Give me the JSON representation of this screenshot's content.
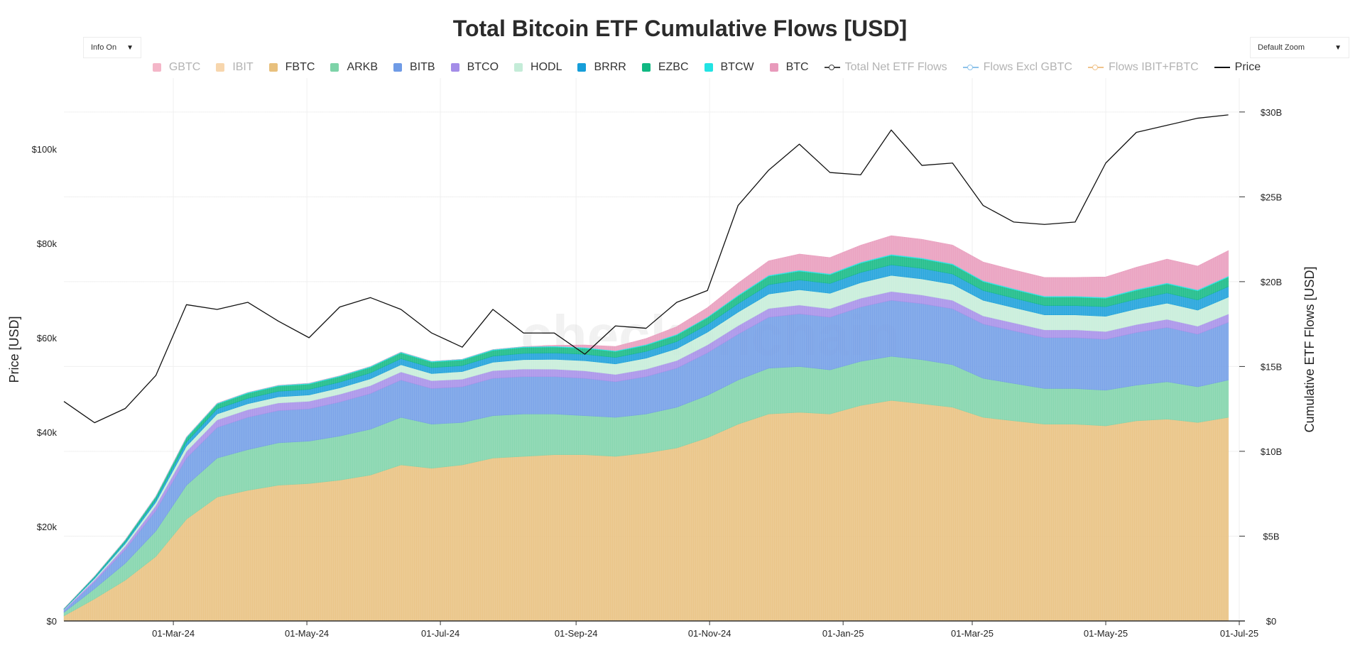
{
  "title": "Total Bitcoin ETF Cumulative Flows [USD]",
  "controls": {
    "info_label": "Info On",
    "zoom_label": "Default Zoom"
  },
  "watermark": "checkonchain",
  "chart_data": {
    "type": "area",
    "title": "Total Bitcoin ETF Cumulative Flows [USD]",
    "x": [
      "2024-01-11",
      "2024-01-25",
      "2024-02-08",
      "2024-02-22",
      "2024-03-07",
      "2024-03-21",
      "2024-04-04",
      "2024-04-18",
      "2024-05-02",
      "2024-05-16",
      "2024-05-30",
      "2024-06-13",
      "2024-06-27",
      "2024-07-11",
      "2024-07-25",
      "2024-08-08",
      "2024-08-22",
      "2024-09-05",
      "2024-09-19",
      "2024-10-03",
      "2024-10-17",
      "2024-10-31",
      "2024-11-14",
      "2024-11-28",
      "2024-12-12",
      "2024-12-26",
      "2025-01-09",
      "2025-01-23",
      "2025-02-06",
      "2025-02-20",
      "2025-03-06",
      "2025-03-20",
      "2025-04-03",
      "2025-04-17",
      "2025-05-01",
      "2025-05-15",
      "2025-05-29",
      "2025-06-12",
      "2025-06-26"
    ],
    "x_tick_labels": [
      "01-Mar-24",
      "01-May-24",
      "01-Jul-24",
      "01-Sep-24",
      "01-Nov-24",
      "01-Jan-25",
      "01-Mar-25",
      "01-May-25",
      "01-Jul-25"
    ],
    "x_tick_dates": [
      "2024-03-01",
      "2024-05-01",
      "2024-07-01",
      "2024-09-01",
      "2024-11-01",
      "2025-01-01",
      "2025-03-01",
      "2025-05-01",
      "2025-07-01"
    ],
    "x_range": [
      "2024-01-11",
      "2025-07-01"
    ],
    "y_left": {
      "label": "Price [USD]",
      "range": [
        0,
        115000
      ],
      "ticks": [
        0,
        20000,
        40000,
        60000,
        80000,
        100000
      ],
      "tick_labels": [
        "$0",
        "$20k",
        "$40k",
        "$60k",
        "$80k",
        "$100k"
      ]
    },
    "y_right": {
      "label": "Cumulative ETF Flows [USD]",
      "range": [
        0,
        32000000000
      ],
      "ticks": [
        0,
        5000000000,
        10000000000,
        15000000000,
        20000000000,
        25000000000,
        30000000000
      ],
      "tick_labels": [
        "$0",
        "$5B",
        "$10B",
        "$15B",
        "$20B",
        "$25B",
        "$30B"
      ]
    },
    "legend": [
      {
        "name": "GBTC",
        "color": "#f4b6c8",
        "kind": "box",
        "state": "off"
      },
      {
        "name": "IBIT",
        "color": "#f7d6ad",
        "kind": "box",
        "state": "off"
      },
      {
        "name": "FBTC",
        "color": "#e8c07d",
        "kind": "box",
        "state": "on"
      },
      {
        "name": "ARKB",
        "color": "#7dd3a8",
        "kind": "box",
        "state": "on"
      },
      {
        "name": "BITB",
        "color": "#6f9be6",
        "kind": "box",
        "state": "on"
      },
      {
        "name": "BTCO",
        "color": "#a48de8",
        "kind": "box",
        "state": "on"
      },
      {
        "name": "HODL",
        "color": "#c4ecd8",
        "kind": "box",
        "state": "on"
      },
      {
        "name": "BRRR",
        "color": "#169ed9",
        "kind": "box",
        "state": "on"
      },
      {
        "name": "EZBC",
        "color": "#10b882",
        "kind": "box",
        "state": "on"
      },
      {
        "name": "BTCW",
        "color": "#22e3e3",
        "kind": "box",
        "state": "on"
      },
      {
        "name": "BTC",
        "color": "#e89abb",
        "kind": "box",
        "state": "on"
      },
      {
        "name": "Total Net ETF Flows",
        "color": "#444444",
        "kind": "line-marker",
        "state": "off"
      },
      {
        "name": "Flows Excl GBTC",
        "color": "#8ec3ea",
        "kind": "line-marker",
        "state": "off"
      },
      {
        "name": "Flows IBIT+FBTC",
        "color": "#f0c48c",
        "kind": "line-marker",
        "state": "off"
      },
      {
        "name": "Price",
        "color": "#111111",
        "kind": "line",
        "state": "on"
      }
    ],
    "series": [
      {
        "name": "FBTC",
        "color": "#e8c07d",
        "axis": "right",
        "values": [
          0.3,
          1.3,
          2.4,
          3.8,
          6.0,
          7.3,
          7.7,
          8.0,
          8.1,
          8.3,
          8.6,
          9.2,
          9.0,
          9.2,
          9.6,
          9.7,
          9.8,
          9.8,
          9.7,
          9.9,
          10.2,
          10.8,
          11.6,
          12.2,
          12.3,
          12.2,
          12.7,
          13.0,
          12.8,
          12.6,
          12.0,
          11.8,
          11.6,
          11.6,
          11.5,
          11.8,
          11.9,
          11.7,
          12.0
        ]
      },
      {
        "name": "ARKB",
        "color": "#7dd3a8",
        "axis": "right",
        "values": [
          0.2,
          0.6,
          1.0,
          1.5,
          2.0,
          2.3,
          2.4,
          2.5,
          2.5,
          2.6,
          2.7,
          2.8,
          2.6,
          2.5,
          2.5,
          2.5,
          2.4,
          2.3,
          2.3,
          2.3,
          2.4,
          2.5,
          2.6,
          2.7,
          2.7,
          2.6,
          2.6,
          2.6,
          2.6,
          2.5,
          2.3,
          2.2,
          2.1,
          2.1,
          2.1,
          2.1,
          2.2,
          2.1,
          2.2
        ]
      },
      {
        "name": "BITB",
        "color": "#6f9be6",
        "axis": "right",
        "values": [
          0.1,
          0.4,
          0.8,
          1.2,
          1.6,
          1.8,
          1.9,
          1.9,
          1.9,
          2.0,
          2.1,
          2.2,
          2.1,
          2.1,
          2.2,
          2.2,
          2.2,
          2.2,
          2.1,
          2.2,
          2.3,
          2.5,
          2.7,
          3.0,
          3.1,
          3.1,
          3.2,
          3.3,
          3.3,
          3.3,
          3.2,
          3.1,
          3.0,
          3.0,
          3.0,
          3.1,
          3.2,
          3.1,
          3.4
        ]
      },
      {
        "name": "BTCO",
        "color": "#a48de8",
        "axis": "right",
        "values": [
          0.05,
          0.12,
          0.2,
          0.3,
          0.4,
          0.45,
          0.45,
          0.45,
          0.45,
          0.46,
          0.47,
          0.48,
          0.46,
          0.45,
          0.45,
          0.45,
          0.44,
          0.44,
          0.43,
          0.44,
          0.45,
          0.47,
          0.5,
          0.52,
          0.52,
          0.51,
          0.52,
          0.52,
          0.51,
          0.5,
          0.48,
          0.47,
          0.46,
          0.46,
          0.46,
          0.47,
          0.48,
          0.47,
          0.49
        ]
      },
      {
        "name": "HODL",
        "color": "#c4ecd8",
        "axis": "right",
        "values": [
          0.03,
          0.08,
          0.15,
          0.2,
          0.3,
          0.35,
          0.35,
          0.36,
          0.37,
          0.38,
          0.4,
          0.42,
          0.42,
          0.45,
          0.5,
          0.55,
          0.58,
          0.6,
          0.62,
          0.65,
          0.7,
          0.75,
          0.8,
          0.85,
          0.9,
          0.9,
          0.92,
          0.95,
          0.95,
          0.95,
          0.92,
          0.9,
          0.88,
          0.88,
          0.9,
          0.92,
          0.95,
          0.95,
          1.0
        ]
      },
      {
        "name": "BRRR",
        "color": "#169ed9",
        "axis": "right",
        "values": [
          0.02,
          0.06,
          0.1,
          0.15,
          0.25,
          0.3,
          0.32,
          0.33,
          0.33,
          0.34,
          0.35,
          0.36,
          0.35,
          0.35,
          0.36,
          0.37,
          0.38,
          0.38,
          0.38,
          0.4,
          0.42,
          0.45,
          0.5,
          0.55,
          0.58,
          0.58,
          0.6,
          0.62,
          0.62,
          0.6,
          0.58,
          0.56,
          0.55,
          0.55,
          0.56,
          0.58,
          0.6,
          0.6,
          0.62
        ]
      },
      {
        "name": "EZBC",
        "color": "#10b882",
        "axis": "right",
        "values": [
          0.02,
          0.06,
          0.1,
          0.16,
          0.24,
          0.28,
          0.3,
          0.3,
          0.31,
          0.32,
          0.33,
          0.34,
          0.33,
          0.33,
          0.34,
          0.35,
          0.35,
          0.35,
          0.35,
          0.36,
          0.38,
          0.4,
          0.45,
          0.5,
          0.52,
          0.52,
          0.55,
          0.56,
          0.56,
          0.55,
          0.52,
          0.5,
          0.5,
          0.5,
          0.5,
          0.52,
          0.54,
          0.54,
          0.56
        ]
      },
      {
        "name": "BTCW",
        "color": "#22e3e3",
        "axis": "right",
        "values": [
          0.01,
          0.02,
          0.03,
          0.04,
          0.05,
          0.05,
          0.05,
          0.05,
          0.05,
          0.05,
          0.05,
          0.05,
          0.05,
          0.05,
          0.05,
          0.05,
          0.05,
          0.05,
          0.05,
          0.05,
          0.05,
          0.05,
          0.06,
          0.06,
          0.06,
          0.06,
          0.06,
          0.06,
          0.06,
          0.06,
          0.06,
          0.06,
          0.06,
          0.06,
          0.06,
          0.06,
          0.06,
          0.06,
          0.06
        ]
      },
      {
        "name": "BTC",
        "color": "#e89abb",
        "axis": "right",
        "values": [
          0,
          0,
          0,
          0,
          0,
          0,
          0,
          0,
          0,
          0,
          0,
          0,
          0,
          0,
          0,
          0,
          0.05,
          0.15,
          0.25,
          0.35,
          0.45,
          0.55,
          0.7,
          0.85,
          0.95,
          0.95,
          1.0,
          1.1,
          1.1,
          1.1,
          1.1,
          1.1,
          1.1,
          1.1,
          1.2,
          1.3,
          1.4,
          1.4,
          1.5
        ]
      },
      {
        "name": "Price",
        "color": "#111111",
        "axis": "left",
        "values": [
          46500,
          42000,
          45000,
          52000,
          67000,
          66000,
          67500,
          63500,
          60000,
          66500,
          68500,
          66000,
          61000,
          58000,
          66000,
          61000,
          61000,
          56500,
          62500,
          62000,
          67500,
          70000,
          88000,
          95500,
          101000,
          95000,
          94500,
          104000,
          96500,
          97000,
          88000,
          84500,
          84000,
          84500,
          97000,
          103500,
          105000,
          106500,
          107200
        ]
      }
    ]
  }
}
